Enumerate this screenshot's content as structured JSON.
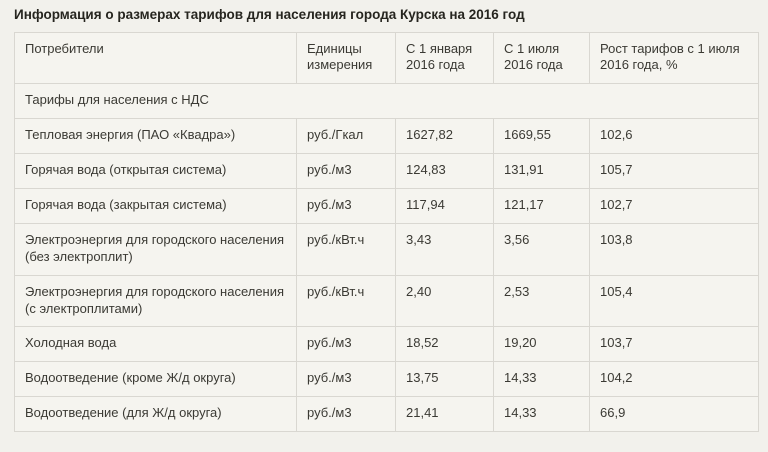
{
  "page": {
    "title": "Информация о размерах тарифов для населения города Курска на 2016 год",
    "colors": {
      "background": "#f2f1ec",
      "cell_background": "#f5f4ef",
      "border": "#d9d7d1",
      "text": "#3b3a34"
    }
  },
  "table": {
    "columns": [
      {
        "label": "Потребители"
      },
      {
        "label": "Единицы измерения"
      },
      {
        "label": "С 1 января 2016 года"
      },
      {
        "label": "С 1 июля 2016 года"
      },
      {
        "label": "Рост тарифов с 1 июля 2016 года, %"
      }
    ],
    "section_header": "Тарифы для населения с НДС",
    "rows": [
      [
        "Тепловая энергия (ПАО «Квадра»)",
        "руб./Гкал",
        "1627,82",
        "1669,55",
        "102,6"
      ],
      [
        "Горячая вода (открытая система)",
        "руб./м3",
        "124,83",
        "131,91",
        "105,7"
      ],
      [
        "Горячая вода (закрытая система)",
        "руб./м3",
        "117,94",
        "121,17",
        "102,7"
      ],
      [
        "Электроэнергия для городского населения (без электроплит)",
        "руб./кВт.ч",
        "3,43",
        "3,56",
        "103,8"
      ],
      [
        "Электроэнергия для городского населения (с электроплитами)",
        "руб./кВт.ч",
        "2,40",
        "2,53",
        "105,4"
      ],
      [
        "Холодная вода",
        "руб./м3",
        "18,52",
        "19,20",
        "103,7"
      ],
      [
        "Водоотведение (кроме Ж/д округа)",
        "руб./м3",
        "13,75",
        "14,33",
        "104,2"
      ],
      [
        "Водоотведение (для Ж/д округа)",
        "руб./м3",
        "21,41",
        "14,33",
        "66,9"
      ]
    ]
  }
}
